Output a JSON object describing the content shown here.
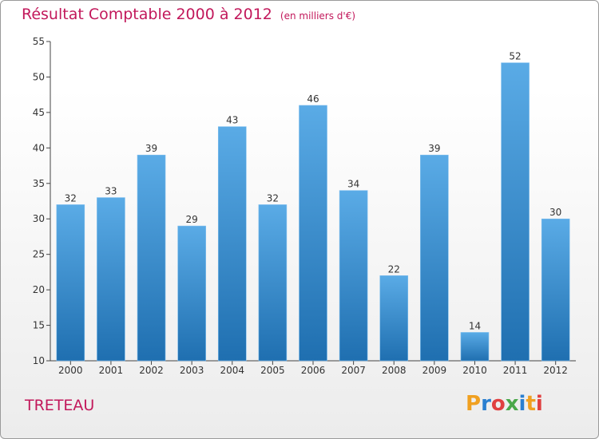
{
  "header": {
    "title": "Résultat Comptable 2000 à 2012",
    "unit": "(en milliers d'€)"
  },
  "footer": {
    "town": "TRETEAU",
    "logo": "Proxiti"
  },
  "colors": {
    "title": "#c2185b",
    "bar_top": "#5aabe6",
    "bar_bottom": "#1f6fb0",
    "logo_letters": [
      "#f0a020",
      "#2a7fd0",
      "#e04040",
      "#4aa84a",
      "#2a7fd0",
      "#f0a020",
      "#e04040"
    ]
  },
  "chart_data": {
    "type": "bar",
    "categories": [
      "2000",
      "2001",
      "2002",
      "2003",
      "2004",
      "2005",
      "2006",
      "2007",
      "2008",
      "2009",
      "2010",
      "2011",
      "2012"
    ],
    "values": [
      32,
      33,
      39,
      29,
      43,
      32,
      46,
      34,
      22,
      39,
      14,
      52,
      30
    ],
    "ylim": [
      10,
      55
    ],
    "yticks": [
      10,
      15,
      20,
      25,
      30,
      35,
      40,
      45,
      50,
      55
    ],
    "grid": false,
    "data_labels": true
  }
}
